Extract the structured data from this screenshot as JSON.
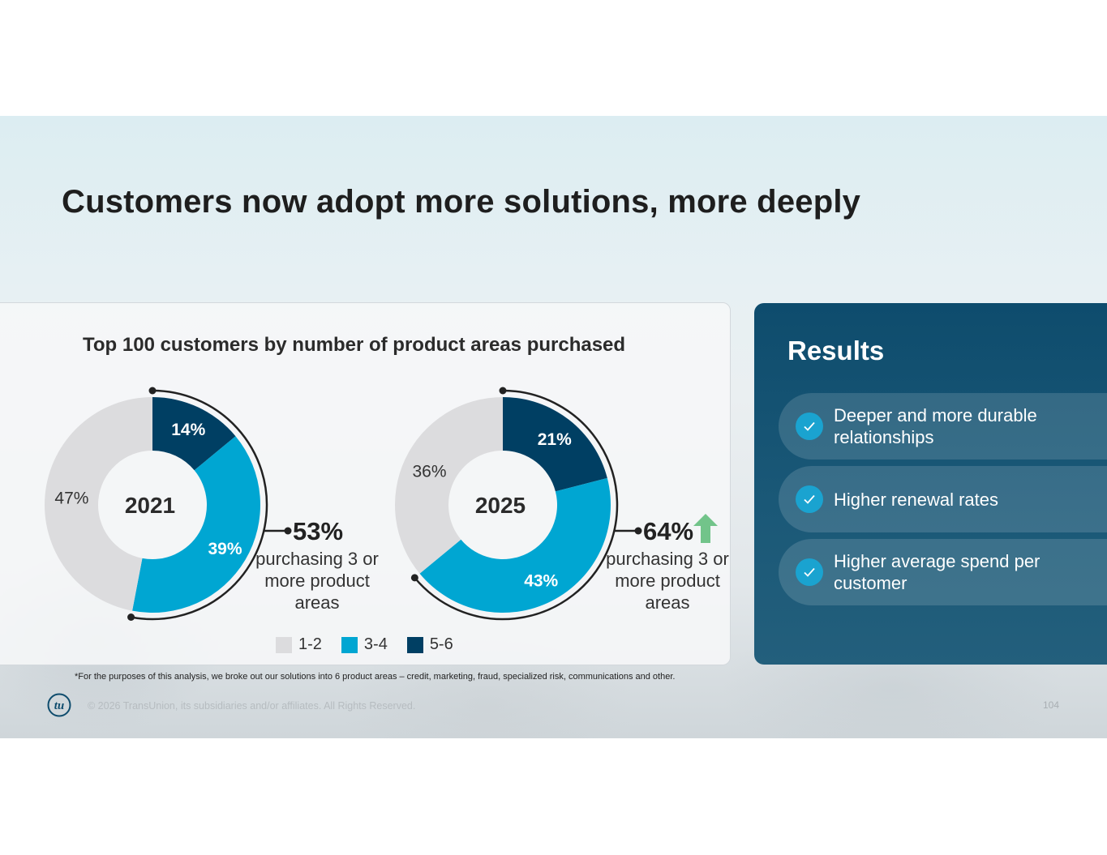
{
  "slide": {
    "title": "Customers now adopt more solutions, more deeply",
    "footnote": "*For the purposes of this analysis, we broke out our solutions into 6 product areas – credit, marketing, fraud, specialized risk, communications and other.",
    "copyright": "© 2026 TransUnion, its subsidiaries and/or affiliates. All Rights Reserved.",
    "page_number": "104",
    "logo_text": "tu"
  },
  "chart_data": {
    "type": "donut",
    "title": "Top 100 customers by number of product areas purchased",
    "legend": [
      {
        "label": "1-2",
        "color": "#dcdcde"
      },
      {
        "label": "3-4",
        "color": "#00a6d2"
      },
      {
        "label": "5-6",
        "color": "#003f63"
      }
    ],
    "charts": [
      {
        "year": "2021",
        "segments": [
          {
            "category": "5-6",
            "value": 14,
            "label": "14%"
          },
          {
            "category": "3-4",
            "value": 39,
            "label": "39%"
          },
          {
            "category": "1-2",
            "value": 47,
            "label": "47%"
          }
        ],
        "callout_value": "53%",
        "callout_text": "purchasing 3 or more product areas",
        "trend": "none"
      },
      {
        "year": "2025",
        "segments": [
          {
            "category": "5-6",
            "value": 21,
            "label": "21%"
          },
          {
            "category": "3-4",
            "value": 43,
            "label": "43%"
          },
          {
            "category": "1-2",
            "value": 36,
            "label": "36%"
          }
        ],
        "callout_value": "64%",
        "callout_text": "purchasing 3 or more product areas",
        "trend": "up"
      }
    ]
  },
  "results": {
    "title": "Results",
    "items": [
      "Deeper and more durable relationships",
      "Higher renewal rates",
      "Higher average spend per customer"
    ]
  },
  "colors": {
    "accent_up": "#72c48a",
    "panel_dark": "#0e4c6d",
    "check": "#1aa3d0"
  }
}
